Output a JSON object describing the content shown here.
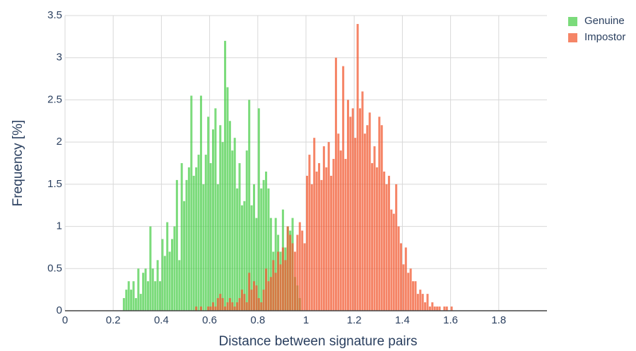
{
  "chart_data": {
    "type": "histogram",
    "xlabel": "Distance between signature pairs",
    "ylabel": "Frequency [%]",
    "xlim": [
      0,
      2
    ],
    "ylim": [
      0,
      3.5
    ],
    "xticks": [
      0,
      0.2,
      0.4,
      0.6,
      0.8,
      1,
      1.2,
      1.4,
      1.6,
      1.8
    ],
    "yticks": [
      0,
      0.5,
      1,
      1.5,
      2,
      2.5,
      3,
      3.5
    ],
    "grid": true,
    "legend": "top-right",
    "opacity": 0.75,
    "series": [
      {
        "name": "Genuine",
        "color": "#4fcf4f",
        "bins": [
          0.24,
          0.25,
          0.26,
          0.27,
          0.28,
          0.29,
          0.3,
          0.31,
          0.32,
          0.33,
          0.34,
          0.35,
          0.36,
          0.37,
          0.38,
          0.39,
          0.4,
          0.41,
          0.42,
          0.43,
          0.44,
          0.45,
          0.46,
          0.47,
          0.48,
          0.49,
          0.5,
          0.51,
          0.52,
          0.53,
          0.54,
          0.55,
          0.56,
          0.57,
          0.58,
          0.59,
          0.6,
          0.61,
          0.62,
          0.63,
          0.64,
          0.65,
          0.66,
          0.67,
          0.68,
          0.69,
          0.7,
          0.71,
          0.72,
          0.73,
          0.74,
          0.75,
          0.76,
          0.77,
          0.78,
          0.79,
          0.8,
          0.81,
          0.82,
          0.83,
          0.84,
          0.85,
          0.86,
          0.87,
          0.88,
          0.89,
          0.9,
          0.91,
          0.92,
          0.93,
          0.94,
          0.95,
          0.96,
          0.97,
          0.98
        ],
        "values": [
          0.15,
          0.25,
          0.35,
          0.25,
          0.35,
          0.15,
          0.5,
          0.2,
          0.45,
          0.5,
          0.35,
          1.0,
          0.5,
          0.35,
          0.6,
          0.35,
          0.85,
          0.65,
          1.05,
          0.7,
          0.85,
          1.0,
          1.55,
          0.6,
          1.75,
          1.3,
          1.55,
          1.7,
          2.55,
          1.6,
          1.7,
          1.85,
          2.55,
          1.5,
          1.85,
          2.3,
          1.75,
          2.15,
          2.4,
          1.5,
          2.2,
          2.0,
          3.2,
          2.65,
          2.25,
          1.9,
          2.05,
          1.45,
          1.75,
          1.25,
          1.3,
          1.9,
          2.5,
          1.25,
          1.5,
          1.1,
          2.4,
          1.45,
          1.55,
          1.65,
          1.45,
          1.1,
          0.7,
          1.1,
          0.9,
          0.7,
          1.2,
          0.75,
          1.0,
          0.95,
          1.1,
          0.4,
          0.3,
          0.15
        ]
      },
      {
        "name": "Impostor",
        "color": "#f25c34",
        "bins": [
          0.54,
          0.55,
          0.56,
          0.57,
          0.58,
          0.59,
          0.6,
          0.61,
          0.62,
          0.63,
          0.64,
          0.65,
          0.66,
          0.67,
          0.68,
          0.69,
          0.7,
          0.71,
          0.72,
          0.73,
          0.74,
          0.75,
          0.76,
          0.77,
          0.78,
          0.79,
          0.8,
          0.81,
          0.82,
          0.83,
          0.84,
          0.85,
          0.86,
          0.87,
          0.88,
          0.89,
          0.9,
          0.91,
          0.92,
          0.93,
          0.94,
          0.95,
          0.96,
          0.97,
          0.98,
          0.99,
          1,
          1.01,
          1.02,
          1.03,
          1.04,
          1.05,
          1.06,
          1.07,
          1.08,
          1.09,
          1.1,
          1.11,
          1.12,
          1.13,
          1.14,
          1.15,
          1.16,
          1.17,
          1.18,
          1.19,
          1.2,
          1.21,
          1.22,
          1.23,
          1.24,
          1.25,
          1.26,
          1.27,
          1.28,
          1.29,
          1.3,
          1.31,
          1.32,
          1.33,
          1.34,
          1.35,
          1.36,
          1.37,
          1.38,
          1.39,
          1.4,
          1.41,
          1.42,
          1.43,
          1.44,
          1.45,
          1.46,
          1.47,
          1.48,
          1.49,
          1.5,
          1.51,
          1.52,
          1.53,
          1.54,
          1.55,
          1.56,
          1.57,
          1.58,
          1.59,
          1.6,
          1.61,
          1.62
        ],
        "values": [
          0.05,
          0,
          0.05,
          0,
          0,
          0.05,
          0.05,
          0.1,
          0.05,
          0.15,
          0.2,
          0.15,
          0.05,
          0.1,
          0.15,
          0.1,
          0.05,
          0.1,
          0.15,
          0.25,
          0.2,
          0.1,
          0.45,
          0.25,
          0.35,
          0.3,
          0.15,
          0.1,
          0.25,
          0.5,
          0.35,
          0.4,
          0.6,
          0.45,
          0.7,
          0.55,
          0.75,
          0.6,
          1.0,
          0.9,
          0.8,
          0.7,
          0.9,
          1.05,
          0.95,
          0.8,
          1.6,
          1.85,
          1.5,
          2.05,
          1.65,
          1.75,
          1.55,
          1.95,
          1.7,
          2.0,
          1.6,
          1.8,
          3.0,
          2.1,
          1.9,
          2.9,
          1.8,
          2.5,
          2.3,
          2.4,
          2.05,
          3.4,
          2.4,
          2.6,
          2.1,
          2.2,
          2.35,
          1.75,
          1.95,
          1.7,
          2.3,
          2.2,
          1.65,
          1.5,
          1.6,
          1.2,
          1.15,
          1.5,
          1.0,
          0.8,
          0.55,
          0.75,
          0.45,
          0.5,
          0.35,
          0.35,
          0.2,
          0.25,
          0.2,
          0.1,
          0.2,
          0.05,
          0.1,
          0.05,
          0.05,
          0.05,
          0,
          0.05,
          0.05,
          0,
          0.05,
          0
        ]
      }
    ]
  }
}
